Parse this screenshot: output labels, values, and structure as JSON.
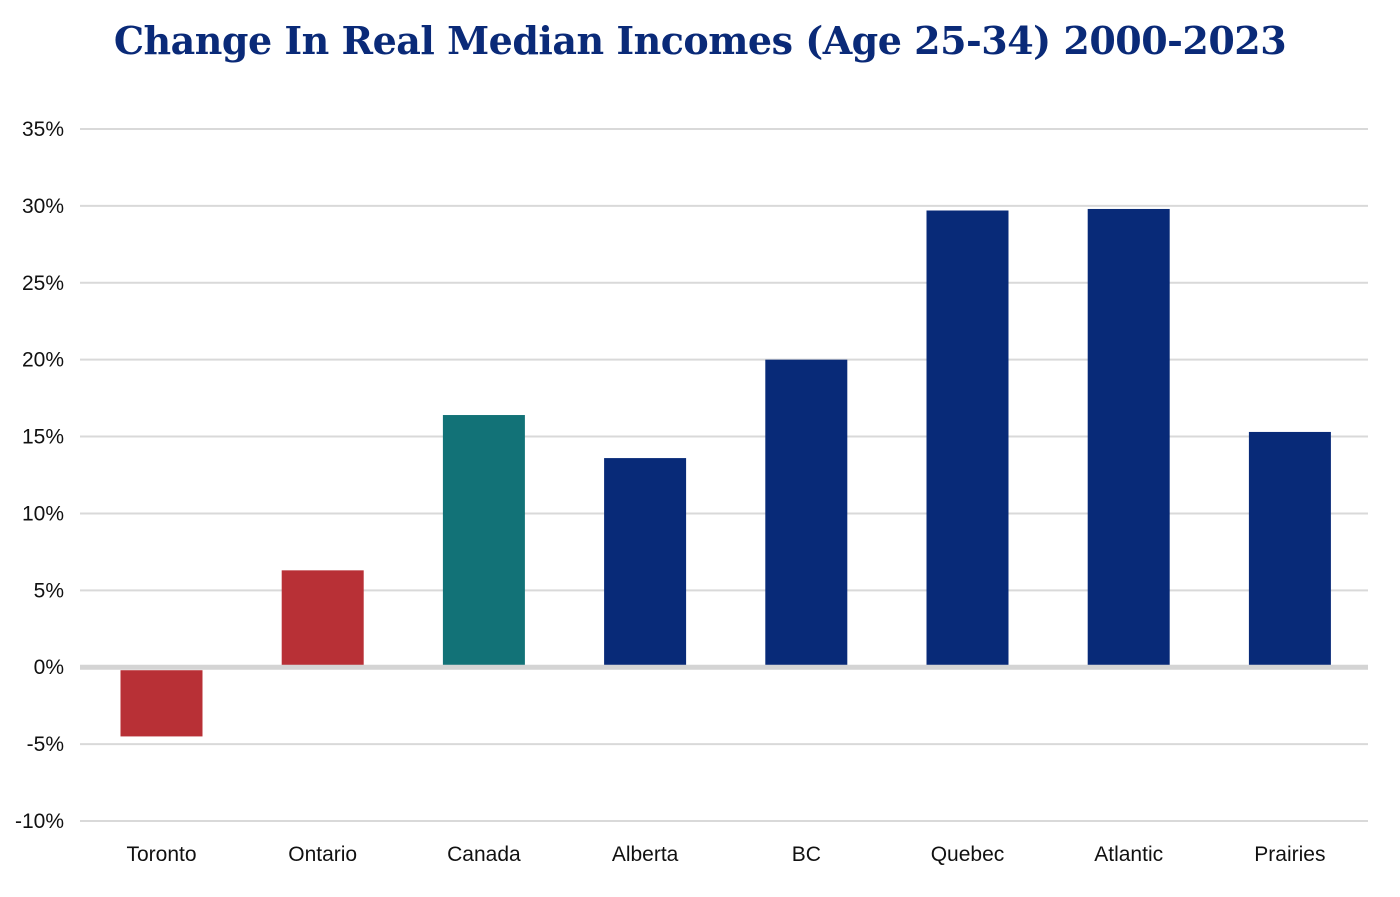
{
  "chart_data": {
    "type": "bar",
    "title": "Change In Real Median Incomes (Age 25-34) 2000-2023",
    "xlabel": "",
    "ylabel": "",
    "categories": [
      "Toronto",
      "Ontario",
      "Canada",
      "Alberta",
      "BC",
      "Quebec",
      "Atlantic",
      "Prairies"
    ],
    "values": [
      -4.5,
      6.3,
      16.4,
      13.6,
      20.0,
      29.7,
      29.8,
      15.3
    ],
    "colors": [
      "#b83036",
      "#b83036",
      "#127277",
      "#082a78",
      "#082a78",
      "#082a78",
      "#082a78",
      "#082a78"
    ],
    "ylim": [
      -10,
      35
    ],
    "yticks": [
      35,
      30,
      25,
      20,
      15,
      10,
      5,
      0,
      -5,
      -10
    ],
    "ytick_labels": [
      "35%",
      "30%",
      "25%",
      "20%",
      "15%",
      "10%",
      "5%",
      "0%",
      "-5%",
      "-10%"
    ],
    "grid": true,
    "legend": "none"
  }
}
